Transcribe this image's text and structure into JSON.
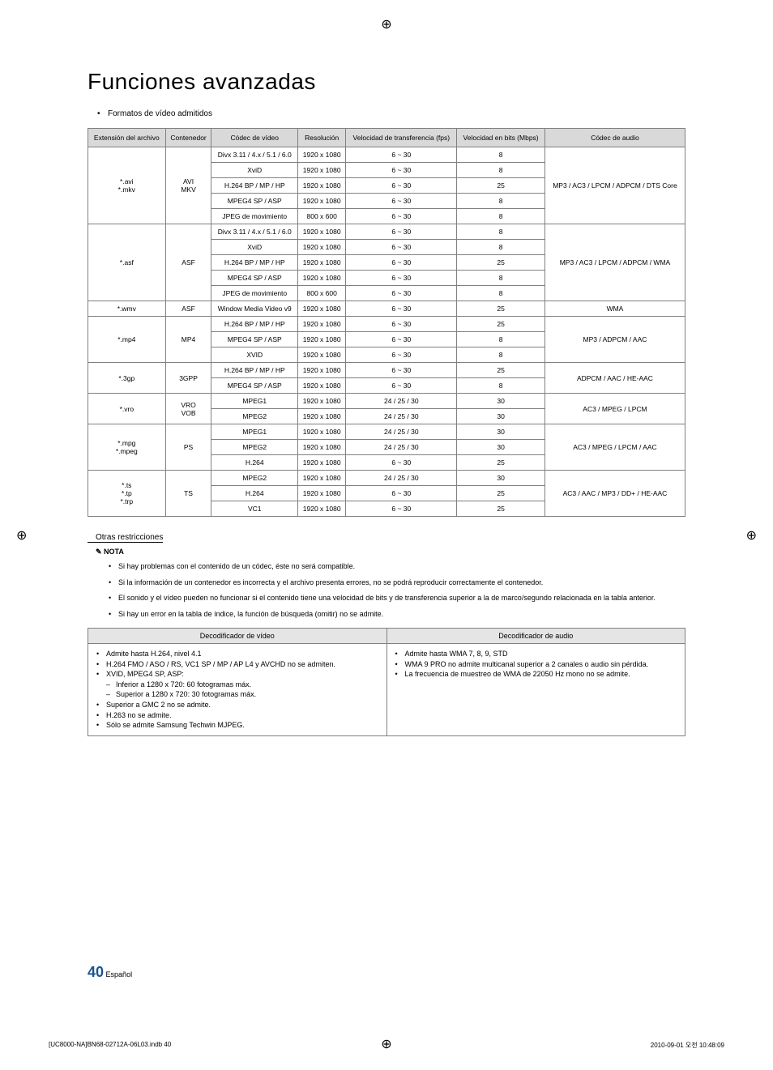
{
  "page": {
    "title": "Funciones avanzadas",
    "intro_bullet": "Formatos de vídeo admitidos",
    "page_number": "40",
    "page_lang": "Español",
    "footer_left": "[UC8000-NA]BN68-02712A-06L03.indb   40",
    "footer_right": "2010-09-01   오전 10:48:09"
  },
  "format_table": {
    "headers": [
      "Extensión del archivo",
      "Contenedor",
      "Códec de vídeo",
      "Resolución",
      "Velocidad de transferencia (fps)",
      "Velocidad en bits (Mbps)",
      "Códec de audio"
    ],
    "groups": [
      {
        "ext": "*.avi\n*.mkv",
        "container": "AVI\nMKV",
        "audio": "MP3 / AC3 / LPCM / ADPCM / DTS Core",
        "rows": [
          {
            "codec": "Divx 3.11 / 4.x / 5.1 / 6.0",
            "res": "1920 x 1080",
            "fps": "6 ~ 30",
            "mbps": "8"
          },
          {
            "codec": "XviD",
            "res": "1920 x 1080",
            "fps": "6 ~ 30",
            "mbps": "8"
          },
          {
            "codec": "H.264 BP / MP / HP",
            "res": "1920 x 1080",
            "fps": "6 ~ 30",
            "mbps": "25"
          },
          {
            "codec": "MPEG4 SP / ASP",
            "res": "1920 x 1080",
            "fps": "6 ~ 30",
            "mbps": "8"
          },
          {
            "codec": "JPEG de movimiento",
            "res": "800 x 600",
            "fps": "6 ~ 30",
            "mbps": "8"
          }
        ]
      },
      {
        "ext": "*.asf",
        "container": "ASF",
        "audio": "MP3 / AC3 / LPCM / ADPCM / WMA",
        "rows": [
          {
            "codec": "Divx 3.11 / 4.x / 5.1 / 6.0",
            "res": "1920 x 1080",
            "fps": "6 ~ 30",
            "mbps": "8"
          },
          {
            "codec": "XviD",
            "res": "1920 x 1080",
            "fps": "6 ~ 30",
            "mbps": "8"
          },
          {
            "codec": "H.264 BP / MP / HP",
            "res": "1920 x 1080",
            "fps": "6 ~ 30",
            "mbps": "25"
          },
          {
            "codec": "MPEG4 SP / ASP",
            "res": "1920 x 1080",
            "fps": "6 ~ 30",
            "mbps": "8"
          },
          {
            "codec": "JPEG de movimiento",
            "res": "800 x 600",
            "fps": "6 ~ 30",
            "mbps": "8"
          }
        ]
      },
      {
        "ext": "*.wmv",
        "container": "ASF",
        "audio": "WMA",
        "rows": [
          {
            "codec": "Window Media Video v9",
            "res": "1920 x 1080",
            "fps": "6 ~ 30",
            "mbps": "25"
          }
        ]
      },
      {
        "ext": "*.mp4",
        "container": "MP4",
        "audio": "MP3 / ADPCM / AAC",
        "rows": [
          {
            "codec": "H.264 BP / MP / HP",
            "res": "1920 x 1080",
            "fps": "6 ~ 30",
            "mbps": "25"
          },
          {
            "codec": "MPEG4 SP / ASP",
            "res": "1920 x 1080",
            "fps": "6 ~ 30",
            "mbps": "8"
          },
          {
            "codec": "XVID",
            "res": "1920 x 1080",
            "fps": "6 ~ 30",
            "mbps": "8"
          }
        ]
      },
      {
        "ext": "*.3gp",
        "container": "3GPP",
        "audio": "ADPCM / AAC / HE-AAC",
        "rows": [
          {
            "codec": "H.264 BP / MP / HP",
            "res": "1920 x 1080",
            "fps": "6 ~ 30",
            "mbps": "25"
          },
          {
            "codec": "MPEG4 SP / ASP",
            "res": "1920 x 1080",
            "fps": "6 ~ 30",
            "mbps": "8"
          }
        ]
      },
      {
        "ext": "*.vro",
        "container": "VRO\nVOB",
        "audio": "AC3 / MPEG / LPCM",
        "rows": [
          {
            "codec": "MPEG1",
            "res": "1920 x 1080",
            "fps": "24 / 25 / 30",
            "mbps": "30"
          },
          {
            "codec": "MPEG2",
            "res": "1920 x 1080",
            "fps": "24 / 25 / 30",
            "mbps": "30"
          }
        ]
      },
      {
        "ext": "*.mpg\n*.mpeg",
        "container": "PS",
        "audio": "AC3 / MPEG / LPCM / AAC",
        "rows": [
          {
            "codec": "MPEG1",
            "res": "1920 x 1080",
            "fps": "24 / 25 / 30",
            "mbps": "30"
          },
          {
            "codec": "MPEG2",
            "res": "1920 x 1080",
            "fps": "24 / 25 / 30",
            "mbps": "30"
          },
          {
            "codec": "H.264",
            "res": "1920 x 1080",
            "fps": "6 ~ 30",
            "mbps": "25"
          }
        ]
      },
      {
        "ext": "*.ts\n*.tp\n*.trp",
        "container": "TS",
        "audio": "AC3 / AAC / MP3 / DD+ / HE-AAC",
        "rows": [
          {
            "codec": "MPEG2",
            "res": "1920 x 1080",
            "fps": "24 / 25 / 30",
            "mbps": "30"
          },
          {
            "codec": "H.264",
            "res": "1920 x 1080",
            "fps": "6 ~ 30",
            "mbps": "25"
          },
          {
            "codec": "VC1",
            "res": "1920 x 1080",
            "fps": "6 ~ 30",
            "mbps": "25"
          }
        ]
      }
    ]
  },
  "restrictions": {
    "header": "Otras restricciones",
    "nota_label": "NOTA",
    "notes": [
      "Si hay problemas con el contenido de un códec, éste no será compatible.",
      "Si la información de un contenedor es incorrecta y el archivo presenta errores, no se podrá reproducir correctamente el contenedor.",
      "El sonido y el vídeo pueden no funcionar si el contenido tiene una velocidad de bits y de transferencia superior a la de marco/segundo relacionada en la tabla anterior.",
      "Si hay un error en la tabla de índice, la función de búsqueda (omitir) no se admite."
    ]
  },
  "decoder_table": {
    "headers": [
      "Decodificador de vídeo",
      "Decodificador de audio"
    ],
    "video": {
      "items": [
        "Admite hasta H.264, nivel 4.1",
        "H.264 FMO / ASO / RS, VC1 SP / MP / AP L4 y AVCHD no se admiten.",
        "XVID, MPEG4 SP, ASP:"
      ],
      "subitems": [
        "Inferior a 1280 x 720: 60 fotogramas máx.",
        "Superior a 1280 x 720: 30 fotogramas máx."
      ],
      "items2": [
        "Superior a GMC 2 no se admite.",
        "H.263 no se admite.",
        "Sólo se admite Samsung Techwin MJPEG."
      ]
    },
    "audio": {
      "items": [
        "Admite hasta WMA 7, 8, 9, STD",
        "WMA 9 PRO no admite multicanal superior a 2 canales o audio sin pérdida.",
        "La frecuencia de muestreo de WMA de 22050 Hz mono no se admite."
      ]
    }
  }
}
